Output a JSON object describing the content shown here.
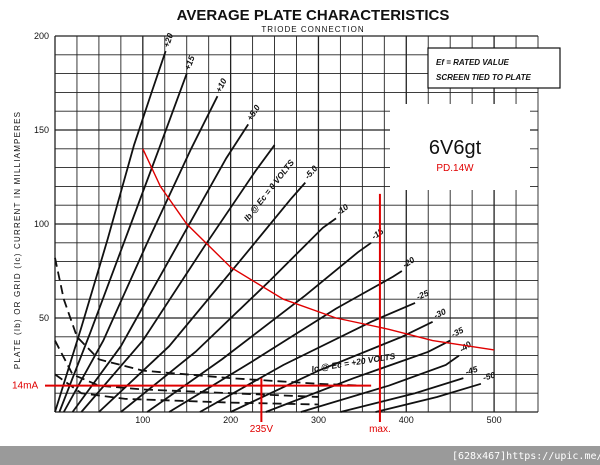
{
  "chart_data": {
    "type": "line",
    "title": "AVERAGE PLATE CHARACTERISTICS",
    "subtitle": "TRIODE CONNECTION",
    "ylabel": "PLATE (Ib) OR GRID (Ic) CURRENT IN MILLIAMPERES",
    "xlim": [
      0,
      550
    ],
    "ylim": [
      0,
      200
    ],
    "x_ticks": [
      "100",
      "200",
      "300",
      "400",
      "500"
    ],
    "y_ticks": [
      "50",
      "100",
      "150",
      "200"
    ],
    "grid": true,
    "notes": [
      "Ef = RATED VALUE",
      "SCREEN TIED TO PLATE"
    ],
    "tube_name": "6V6gt",
    "tube_rating": "PD.14W",
    "plate_curve_label": "Ib @ Ec = 0 VOLTS",
    "grid_curve_label": "Ic @ Ec = +20 VOLTS",
    "series": [
      {
        "grid_voltage": "+20",
        "points": [
          [
            0,
            0
          ],
          [
            30,
            45
          ],
          [
            60,
            92
          ],
          [
            90,
            142
          ],
          [
            110,
            170
          ],
          [
            126,
            192
          ]
        ]
      },
      {
        "grid_voltage": "+15",
        "points": [
          [
            5,
            0
          ],
          [
            40,
            42
          ],
          [
            80,
            92
          ],
          [
            120,
            142
          ],
          [
            150,
            180
          ]
        ]
      },
      {
        "grid_voltage": "+10",
        "points": [
          [
            10,
            0
          ],
          [
            55,
            38
          ],
          [
            105,
            90
          ],
          [
            155,
            140
          ],
          [
            185,
            168
          ]
        ]
      },
      {
        "grid_voltage": "+5.0",
        "points": [
          [
            20,
            0
          ],
          [
            75,
            35
          ],
          [
            135,
            85
          ],
          [
            195,
            135
          ],
          [
            220,
            153
          ]
        ]
      },
      {
        "grid_voltage": "0",
        "points": [
          [
            30,
            0
          ],
          [
            100,
            38
          ],
          [
            170,
            88
          ],
          [
            228,
            128
          ],
          [
            250,
            142
          ]
        ]
      },
      {
        "grid_voltage": "-5.0",
        "points": [
          [
            50,
            0
          ],
          [
            130,
            35
          ],
          [
            210,
            80
          ],
          [
            268,
            113
          ],
          [
            285,
            122
          ]
        ]
      },
      {
        "grid_voltage": "-10",
        "points": [
          [
            75,
            0
          ],
          [
            160,
            32
          ],
          [
            245,
            70
          ],
          [
            305,
            98
          ],
          [
            320,
            103
          ]
        ]
      },
      {
        "grid_voltage": "-15",
        "points": [
          [
            105,
            0
          ],
          [
            190,
            28
          ],
          [
            285,
            62
          ],
          [
            345,
            85
          ],
          [
            360,
            90
          ]
        ]
      },
      {
        "grid_voltage": "-20",
        "points": [
          [
            130,
            0
          ],
          [
            225,
            27
          ],
          [
            320,
            55
          ],
          [
            385,
            72
          ],
          [
            395,
            75
          ]
        ]
      },
      {
        "grid_voltage": "-25",
        "points": [
          [
            165,
            0
          ],
          [
            260,
            25
          ],
          [
            360,
            48
          ],
          [
            410,
            58
          ]
        ]
      },
      {
        "grid_voltage": "-30",
        "points": [
          [
            200,
            0
          ],
          [
            300,
            22
          ],
          [
            395,
            40
          ],
          [
            430,
            48
          ]
        ]
      },
      {
        "grid_voltage": "-35",
        "points": [
          [
            240,
            0
          ],
          [
            340,
            18
          ],
          [
            425,
            32
          ],
          [
            450,
            38
          ]
        ]
      },
      {
        "grid_voltage": "-40",
        "points": [
          [
            280,
            0
          ],
          [
            380,
            14
          ],
          [
            445,
            25
          ],
          [
            460,
            30
          ]
        ]
      },
      {
        "grid_voltage": "-45",
        "points": [
          [
            325,
            0
          ],
          [
            410,
            10
          ],
          [
            465,
            18
          ]
        ]
      },
      {
        "grid_voltage": "-50",
        "points": [
          [
            365,
            0
          ],
          [
            435,
            8
          ],
          [
            485,
            15
          ]
        ]
      }
    ],
    "grid_current_curves": [
      {
        "name": "dashed-upper",
        "points": [
          [
            0,
            82
          ],
          [
            10,
            60
          ],
          [
            25,
            40
          ],
          [
            50,
            28
          ],
          [
            100,
            22
          ],
          [
            200,
            18
          ],
          [
            300,
            15
          ],
          [
            350,
            14
          ]
        ]
      },
      {
        "name": "dashed-lower",
        "points": [
          [
            0,
            38
          ],
          [
            20,
            20
          ],
          [
            50,
            14
          ],
          [
            100,
            12
          ],
          [
            200,
            10
          ],
          [
            300,
            8
          ]
        ]
      },
      {
        "name": "dashed-bottom",
        "points": [
          [
            0,
            20
          ],
          [
            30,
            10
          ],
          [
            80,
            7
          ],
          [
            200,
            5
          ],
          [
            300,
            4
          ]
        ]
      }
    ],
    "load_curve": {
      "color": "#e00000",
      "points": [
        [
          100,
          140
        ],
        [
          120,
          120
        ],
        [
          150,
          100
        ],
        [
          200,
          77
        ],
        [
          260,
          60
        ],
        [
          320,
          50
        ],
        [
          380,
          44
        ],
        [
          430,
          38
        ],
        [
          500,
          33
        ]
      ]
    },
    "annotations": [
      {
        "text": "14mA",
        "axis": "y",
        "value": 14
      },
      {
        "text": "235V",
        "axis": "x",
        "value": 235
      },
      {
        "text": "max.",
        "axis": "x",
        "value": 370
      }
    ],
    "watermark": "[628x467]https://upic.me/"
  }
}
